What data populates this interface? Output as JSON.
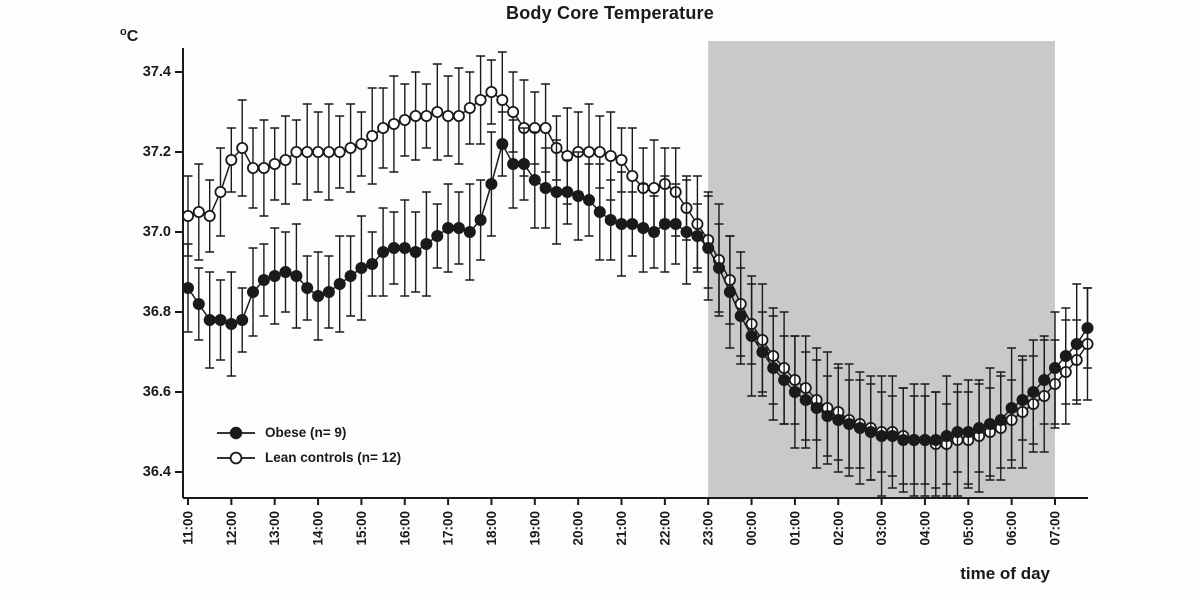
{
  "title": "Body Core Temperature",
  "y_axis": {
    "unit_sup": "o",
    "unit_base": "C",
    "tick_labels": [
      "37.4",
      "37.2",
      "37.0",
      "36.8",
      "36.6",
      "36.4"
    ]
  },
  "x_axis": {
    "title": "time of day",
    "tick_labels": [
      "11:00",
      "12:00",
      "13:00",
      "14:00",
      "15:00",
      "16:00",
      "17:00",
      "18:00",
      "19:00",
      "20:00",
      "21:00",
      "22:00",
      "23:00",
      "00:00",
      "01:00",
      "02:00",
      "03:00",
      "04:00",
      "05:00",
      "06:00",
      "07:00"
    ]
  },
  "legend": {
    "items": [
      {
        "label": "Obese (n= 9)",
        "marker": "filled-circle"
      },
      {
        "label": "Lean controls (n= 12)",
        "marker": "open-circle"
      }
    ]
  },
  "night_shading": {
    "from": "23:00",
    "to": "07:00",
    "color": "#c9c9c9"
  },
  "colors": {
    "ink": "#1a1a1a",
    "background": "#fdfdfd",
    "shade": "#c9c9c9",
    "open_marker_fill": "#ffffff"
  },
  "chart_data": {
    "type": "line",
    "title": "Body Core Temperature",
    "xlabel": "time of day",
    "ylabel": "°C",
    "ylim": [
      36.35,
      37.45
    ],
    "grid": false,
    "legend_position": "lower-left-inside",
    "x_start": "11:00",
    "x_end": "07:45",
    "x_step_minutes": 15,
    "hour_ticks": [
      "11:00",
      "12:00",
      "13:00",
      "14:00",
      "15:00",
      "16:00",
      "17:00",
      "18:00",
      "19:00",
      "20:00",
      "21:00",
      "22:00",
      "23:00",
      "00:00",
      "01:00",
      "02:00",
      "03:00",
      "04:00",
      "05:00",
      "06:00",
      "07:00"
    ],
    "series": [
      {
        "name": "Obese (n= 9)",
        "marker": "filled-circle",
        "color": "#1a1a1a",
        "values": [
          36.86,
          36.82,
          36.78,
          36.78,
          36.77,
          36.78,
          36.85,
          36.88,
          36.89,
          36.9,
          36.89,
          36.86,
          36.84,
          36.85,
          36.87,
          36.89,
          36.91,
          36.92,
          36.95,
          36.96,
          36.96,
          36.95,
          36.97,
          36.99,
          37.01,
          37.01,
          37.0,
          37.03,
          37.12,
          37.22,
          37.17,
          37.17,
          37.13,
          37.11,
          37.1,
          37.1,
          37.09,
          37.08,
          37.05,
          37.03,
          37.02,
          37.02,
          37.01,
          37.0,
          37.02,
          37.02,
          37.0,
          36.99,
          36.96,
          36.91,
          36.85,
          36.79,
          36.74,
          36.7,
          36.66,
          36.63,
          36.6,
          36.58,
          36.56,
          36.54,
          36.53,
          36.52,
          36.51,
          36.5,
          36.49,
          36.49,
          36.48,
          36.48,
          36.48,
          36.48,
          36.49,
          36.5,
          36.5,
          36.51,
          36.52,
          36.53,
          36.56,
          36.58,
          36.6,
          36.63,
          36.66,
          36.69,
          36.72,
          36.76
        ],
        "err": [
          0.11,
          0.09,
          0.12,
          0.1,
          0.13,
          0.08,
          0.11,
          0.09,
          0.12,
          0.1,
          0.13,
          0.08,
          0.11,
          0.09,
          0.12,
          0.1,
          0.13,
          0.08,
          0.11,
          0.09,
          0.12,
          0.1,
          0.13,
          0.08,
          0.11,
          0.09,
          0.12,
          0.1,
          0.13,
          0.08,
          0.11,
          0.09,
          0.12,
          0.1,
          0.13,
          0.08,
          0.11,
          0.09,
          0.12,
          0.1,
          0.13,
          0.08,
          0.11,
          0.09,
          0.12,
          0.1,
          0.13,
          0.08,
          0.13,
          0.11,
          0.14,
          0.12,
          0.15,
          0.1,
          0.13,
          0.11,
          0.14,
          0.12,
          0.15,
          0.1,
          0.13,
          0.11,
          0.14,
          0.12,
          0.15,
          0.1,
          0.13,
          0.11,
          0.14,
          0.12,
          0.15,
          0.1,
          0.13,
          0.11,
          0.14,
          0.12,
          0.15,
          0.1,
          0.13,
          0.11,
          0.14,
          0.12,
          0.15,
          0.1
        ]
      },
      {
        "name": "Lean controls (n= 12)",
        "marker": "open-circle",
        "color": "#1a1a1a",
        "fill": "#ffffff",
        "values": [
          37.04,
          37.05,
          37.04,
          37.1,
          37.18,
          37.21,
          37.16,
          37.16,
          37.17,
          37.18,
          37.2,
          37.2,
          37.2,
          37.2,
          37.2,
          37.21,
          37.22,
          37.24,
          37.26,
          37.27,
          37.28,
          37.29,
          37.29,
          37.3,
          37.29,
          37.29,
          37.31,
          37.33,
          37.35,
          37.33,
          37.3,
          37.26,
          37.26,
          37.26,
          37.21,
          37.19,
          37.2,
          37.2,
          37.2,
          37.19,
          37.18,
          37.14,
          37.11,
          37.11,
          37.12,
          37.1,
          37.06,
          37.02,
          36.98,
          36.93,
          36.88,
          36.82,
          36.77,
          36.73,
          36.69,
          36.66,
          36.63,
          36.61,
          36.58,
          36.56,
          36.55,
          36.53,
          36.52,
          36.51,
          36.5,
          36.5,
          36.49,
          36.48,
          36.48,
          36.47,
          36.47,
          36.48,
          36.48,
          36.49,
          36.5,
          36.51,
          36.53,
          36.55,
          36.57,
          36.59,
          36.62,
          36.65,
          36.68,
          36.72
        ],
        "err": [
          0.1,
          0.12,
          0.09,
          0.11,
          0.08,
          0.12,
          0.1,
          0.12,
          0.09,
          0.11,
          0.08,
          0.12,
          0.1,
          0.12,
          0.09,
          0.11,
          0.08,
          0.12,
          0.1,
          0.12,
          0.09,
          0.11,
          0.08,
          0.12,
          0.1,
          0.12,
          0.09,
          0.11,
          0.08,
          0.12,
          0.1,
          0.12,
          0.09,
          0.11,
          0.08,
          0.12,
          0.1,
          0.12,
          0.09,
          0.11,
          0.08,
          0.12,
          0.1,
          0.12,
          0.09,
          0.11,
          0.08,
          0.12,
          0.12,
          0.14,
          0.11,
          0.13,
          0.1,
          0.14,
          0.12,
          0.14,
          0.11,
          0.13,
          0.1,
          0.14,
          0.12,
          0.14,
          0.11,
          0.13,
          0.1,
          0.14,
          0.12,
          0.14,
          0.11,
          0.13,
          0.1,
          0.14,
          0.12,
          0.14,
          0.11,
          0.13,
          0.1,
          0.14,
          0.12,
          0.14,
          0.11,
          0.13,
          0.1,
          0.14
        ]
      }
    ]
  }
}
